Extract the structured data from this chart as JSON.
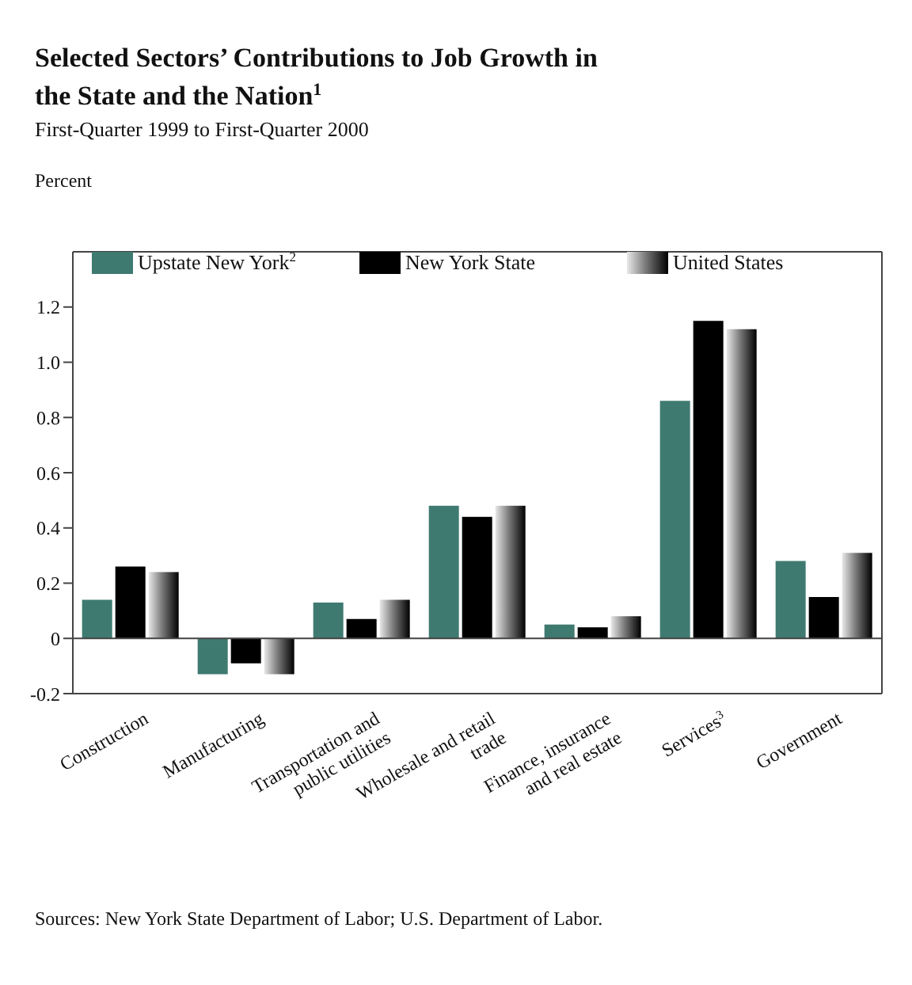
{
  "chart_data": {
    "type": "bar",
    "title": "Selected Sectors’ Contributions to Job Growth in the State and the Nation$^{1}$",
    "subtitle": "First-Quarter 1999 to First-Quarter 2000",
    "ylabel": "Percent",
    "categories": [
      "Construction",
      "Manufacturing",
      "Transportation and public utilities",
      "Wholesale and retail trade",
      "Finance, insurance and real estate",
      "Services$^{3}$",
      "Government"
    ],
    "series": [
      {
        "name": "Upstate New York$^{2}$",
        "color": "#3f7a70",
        "values": [
          0.14,
          -0.13,
          0.13,
          0.48,
          0.05,
          0.86,
          0.28
        ]
      },
      {
        "name": "New York State",
        "color": "#000000",
        "values": [
          0.26,
          -0.09,
          0.07,
          0.44,
          0.04,
          1.15,
          0.15
        ]
      },
      {
        "name": "United States",
        "color": "#7a7a7a",
        "values": [
          0.24,
          -0.13,
          0.14,
          0.48,
          0.08,
          1.12,
          0.31
        ]
      }
    ],
    "ylim": [
      -0.2,
      1.4
    ],
    "yticks": [
      -0.2,
      0,
      0.2,
      0.4,
      0.6,
      0.8,
      {
        "value": 1,
        "label": "1.0"
      },
      1.2
    ],
    "grid": false,
    "ref_lines": [
      {
        "axis": "y",
        "value": 0
      }
    ],
    "legend": "top",
    "annotations": [
      "Sources: New York State Department of Labor; U.S. Department of Labor."
    ]
  }
}
